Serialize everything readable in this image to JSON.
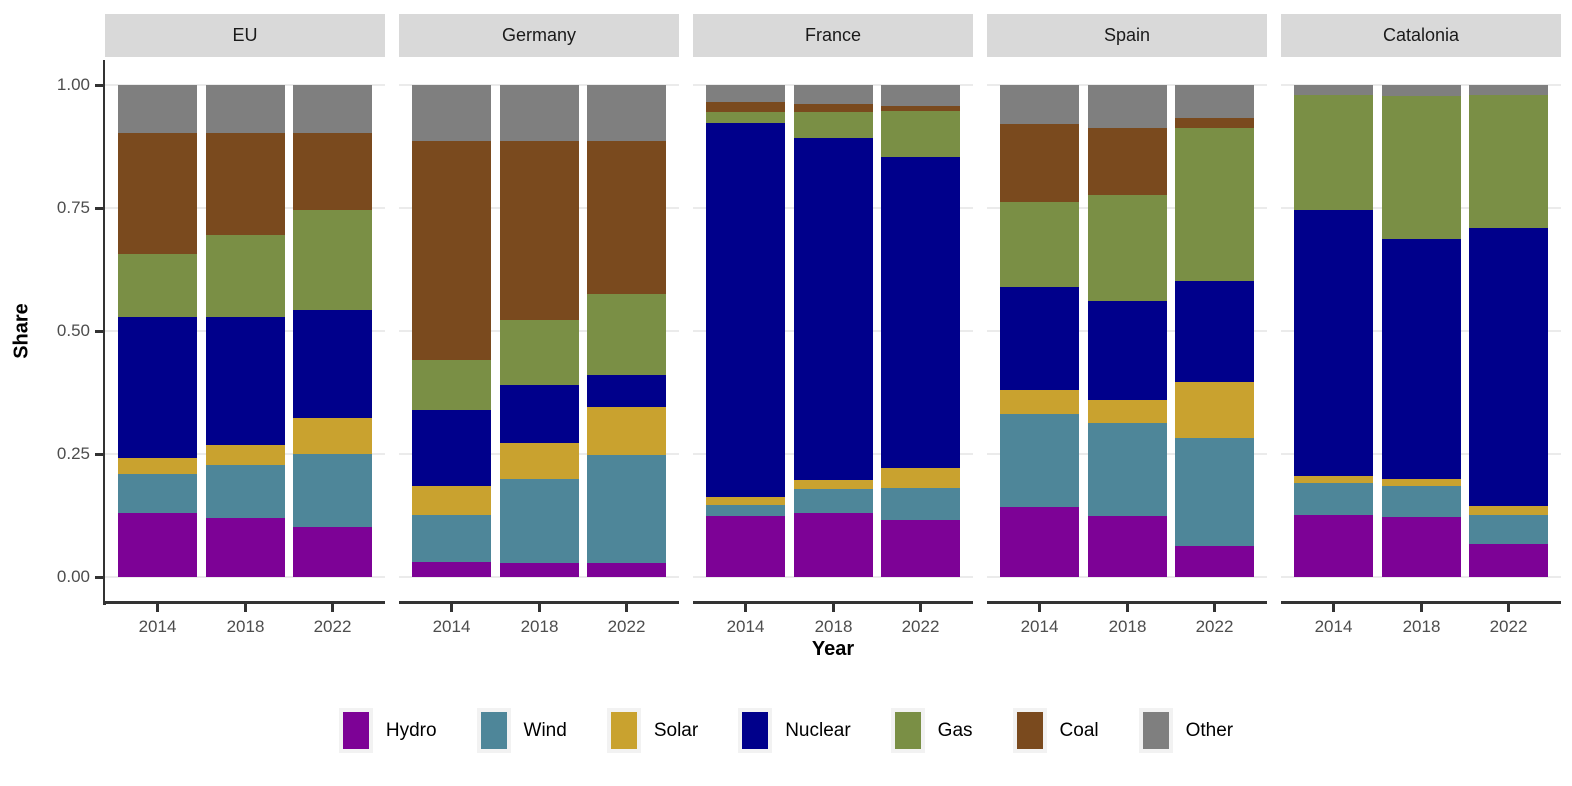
{
  "axes": {
    "y_label": "Share",
    "x_label": "Year",
    "y_tick_labels": [
      "0.00",
      "0.25",
      "0.50",
      "0.75",
      "1.00"
    ]
  },
  "chart_data": {
    "type": "bar",
    "stacked": true,
    "normalized": true,
    "title": "",
    "xlabel": "Year",
    "ylabel": "Share",
    "ylim": [
      0,
      1
    ],
    "y_ticks": [
      0,
      0.25,
      0.5,
      0.75,
      1.0
    ],
    "grid": true,
    "legend_position": "bottom",
    "categories": [
      "2014",
      "2018",
      "2022"
    ],
    "series_order": [
      "Hydro",
      "Wind",
      "Solar",
      "Nuclear",
      "Gas",
      "Coal",
      "Other"
    ],
    "colors": {
      "Hydro": "#7d0296",
      "Wind": "#4e8699",
      "Solar": "#c9a22f",
      "Nuclear": "#00008b",
      "Gas": "#7a8f45",
      "Coal": "#7a4a1e",
      "Other": "#7f7f7f"
    },
    "facets": [
      {
        "name": "EU",
        "bars": [
          {
            "year": "2014",
            "values": {
              "Hydro": 0.13,
              "Wind": 0.08,
              "Solar": 0.032,
              "Nuclear": 0.286,
              "Gas": 0.128,
              "Coal": 0.246,
              "Other": 0.098
            }
          },
          {
            "year": "2018",
            "values": {
              "Hydro": 0.12,
              "Wind": 0.108,
              "Solar": 0.04,
              "Nuclear": 0.26,
              "Gas": 0.167,
              "Coal": 0.207,
              "Other": 0.098
            }
          },
          {
            "year": "2022",
            "values": {
              "Hydro": 0.101,
              "Wind": 0.149,
              "Solar": 0.074,
              "Nuclear": 0.218,
              "Gas": 0.204,
              "Coal": 0.156,
              "Other": 0.098
            }
          }
        ]
      },
      {
        "name": "Germany",
        "bars": [
          {
            "year": "2014",
            "values": {
              "Hydro": 0.03,
              "Wind": 0.097,
              "Solar": 0.058,
              "Nuclear": 0.155,
              "Gas": 0.102,
              "Coal": 0.444,
              "Other": 0.114
            }
          },
          {
            "year": "2018",
            "values": {
              "Hydro": 0.029,
              "Wind": 0.17,
              "Solar": 0.073,
              "Nuclear": 0.118,
              "Gas": 0.132,
              "Coal": 0.364,
              "Other": 0.114
            }
          },
          {
            "year": "2022",
            "values": {
              "Hydro": 0.029,
              "Wind": 0.218,
              "Solar": 0.098,
              "Nuclear": 0.065,
              "Gas": 0.166,
              "Coal": 0.31,
              "Other": 0.114
            }
          }
        ]
      },
      {
        "name": "France",
        "bars": [
          {
            "year": "2014",
            "values": {
              "Hydro": 0.125,
              "Wind": 0.022,
              "Solar": 0.015,
              "Nuclear": 0.761,
              "Gas": 0.023,
              "Coal": 0.019,
              "Other": 0.035
            }
          },
          {
            "year": "2018",
            "values": {
              "Hydro": 0.13,
              "Wind": 0.048,
              "Solar": 0.02,
              "Nuclear": 0.695,
              "Gas": 0.053,
              "Coal": 0.016,
              "Other": 0.038
            }
          },
          {
            "year": "2022",
            "values": {
              "Hydro": 0.115,
              "Wind": 0.065,
              "Solar": 0.042,
              "Nuclear": 0.631,
              "Gas": 0.095,
              "Coal": 0.01,
              "Other": 0.042
            }
          }
        ]
      },
      {
        "name": "Spain",
        "bars": [
          {
            "year": "2014",
            "values": {
              "Hydro": 0.142,
              "Wind": 0.189,
              "Solar": 0.05,
              "Nuclear": 0.209,
              "Gas": 0.172,
              "Coal": 0.159,
              "Other": 0.079
            }
          },
          {
            "year": "2018",
            "values": {
              "Hydro": 0.124,
              "Wind": 0.189,
              "Solar": 0.046,
              "Nuclear": 0.203,
              "Gas": 0.214,
              "Coal": 0.136,
              "Other": 0.088
            }
          },
          {
            "year": "2022",
            "values": {
              "Hydro": 0.064,
              "Wind": 0.218,
              "Solar": 0.115,
              "Nuclear": 0.204,
              "Gas": 0.311,
              "Coal": 0.021,
              "Other": 0.067
            }
          }
        ]
      },
      {
        "name": "Catalonia",
        "bars": [
          {
            "year": "2014",
            "values": {
              "Hydro": 0.126,
              "Wind": 0.066,
              "Solar": 0.014,
              "Nuclear": 0.54,
              "Gas": 0.234,
              "Coal": 0.0,
              "Other": 0.02
            }
          },
          {
            "year": "2018",
            "values": {
              "Hydro": 0.122,
              "Wind": 0.063,
              "Solar": 0.014,
              "Nuclear": 0.489,
              "Gas": 0.289,
              "Coal": 0.0,
              "Other": 0.023
            }
          },
          {
            "year": "2022",
            "values": {
              "Hydro": 0.068,
              "Wind": 0.058,
              "Solar": 0.019,
              "Nuclear": 0.564,
              "Gas": 0.271,
              "Coal": 0.0,
              "Other": 0.02
            }
          }
        ]
      }
    ],
    "legend": [
      {
        "label": "Hydro",
        "color": "#7d0296"
      },
      {
        "label": "Wind",
        "color": "#4e8699"
      },
      {
        "label": "Solar",
        "color": "#c9a22f"
      },
      {
        "label": "Nuclear",
        "color": "#00008b"
      },
      {
        "label": "Gas",
        "color": "#7a8f45"
      },
      {
        "label": "Coal",
        "color": "#7a4a1e"
      },
      {
        "label": "Other",
        "color": "#7f7f7f"
      }
    ]
  }
}
